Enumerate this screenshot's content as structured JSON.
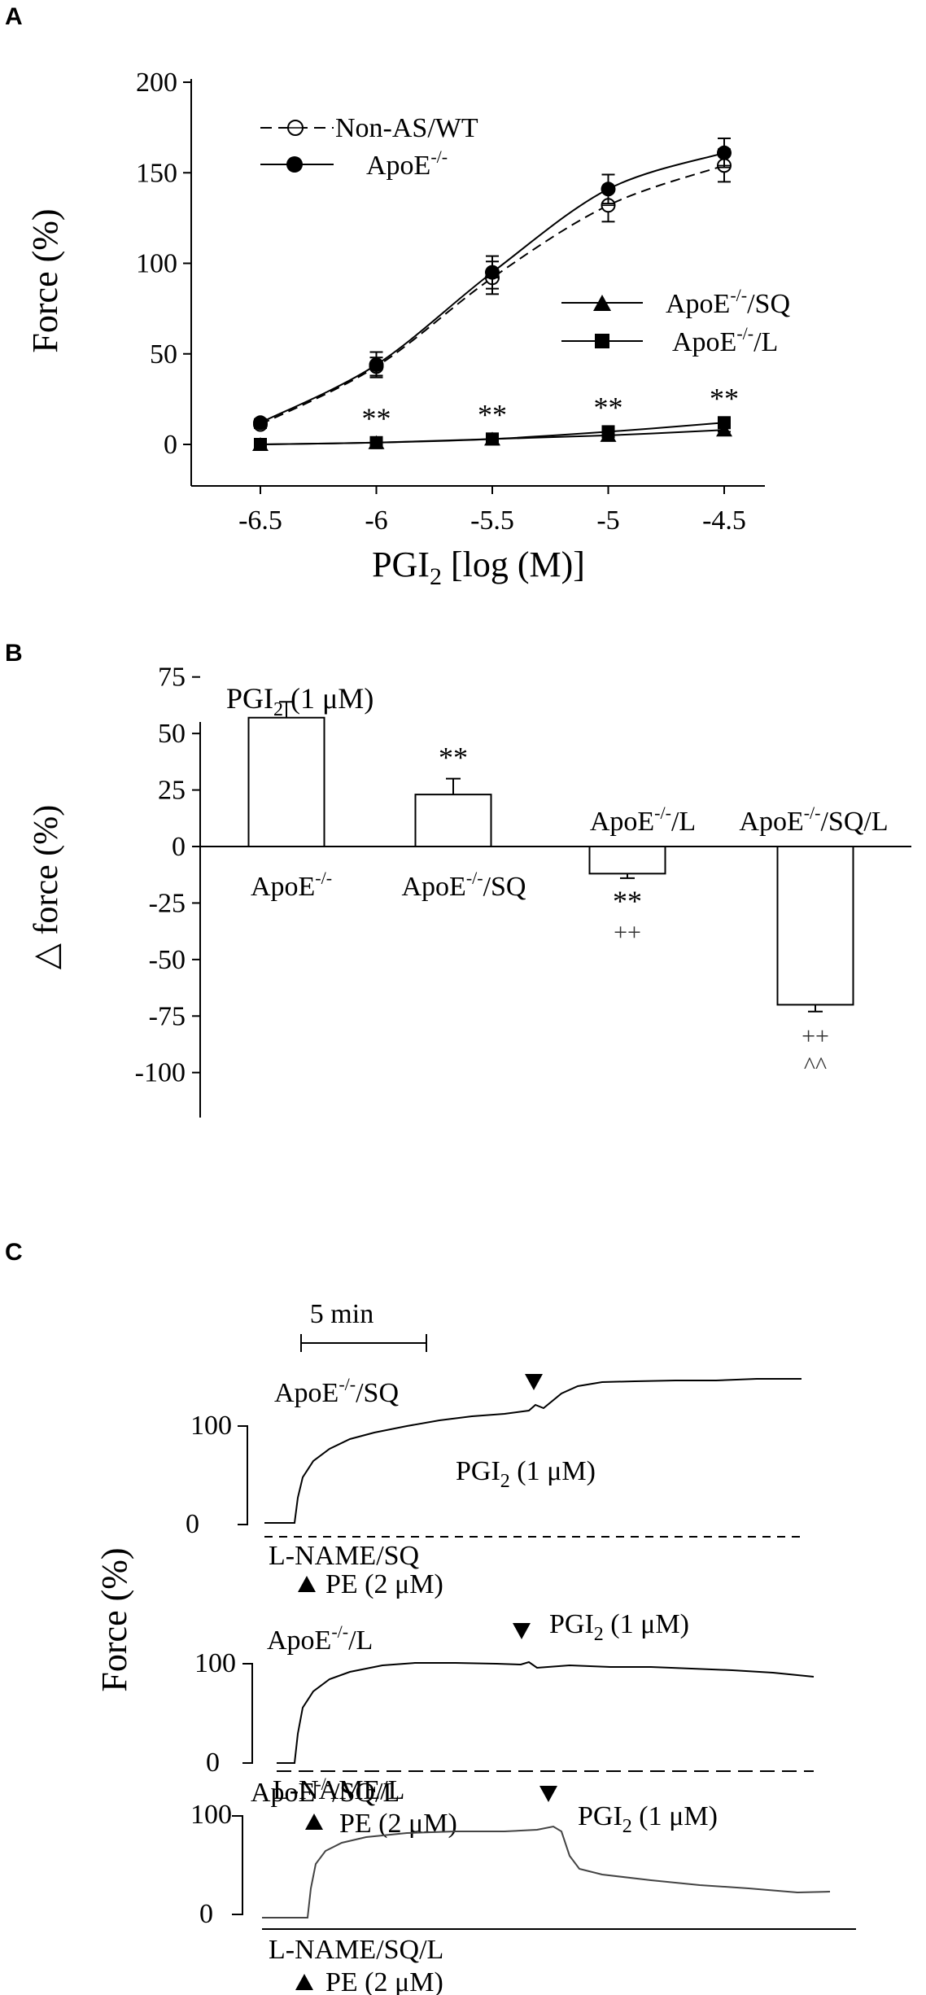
{
  "panels": {
    "a_label": "A",
    "b_label": "B",
    "c_label": "C"
  },
  "chart_data": [
    {
      "type": "line",
      "panel": "A",
      "ylabel": "Force (%)",
      "xlabel_main": "PGI",
      "xlabel_sub": "2",
      "xlabel_rest": " [log (M)]",
      "x": [
        -6.5,
        -6,
        -5.5,
        -5,
        -4.5
      ],
      "x_ticks": [
        "-6.5",
        "-6",
        "-5.5",
        "-5",
        "-4.5"
      ],
      "y_ticks": [
        "0",
        "50",
        "100",
        "150",
        "200"
      ],
      "ylim": [
        0,
        200
      ],
      "series": [
        {
          "name": "Non-AS/WT",
          "values": [
            11,
            43,
            92,
            132,
            154
          ],
          "err": [
            2,
            5,
            9,
            9,
            9
          ],
          "marker": "open-circle",
          "dash": true
        },
        {
          "name": "ApoE",
          "values": [
            12,
            44,
            95,
            141,
            161
          ],
          "err": [
            2,
            7,
            9,
            8,
            8
          ],
          "marker": "filled-circle",
          "dash": false
        },
        {
          "name": "ApoE",
          "values": [
            0,
            1,
            3,
            5,
            8
          ],
          "err": [
            0,
            0,
            0,
            1,
            1
          ],
          "marker": "triangle",
          "dash": false
        },
        {
          "name": "ApoE",
          "values": [
            0,
            1,
            3,
            7,
            12
          ],
          "err": [
            0,
            0,
            1,
            1,
            1
          ],
          "marker": "square",
          "dash": false
        }
      ],
      "legend": [
        {
          "main": "Non-AS/WT",
          "sup": "",
          "suffix": ""
        },
        {
          "main": "ApoE",
          "sup": "-/-",
          "suffix": ""
        },
        {
          "main": "ApoE",
          "sup": "-/-",
          "suffix": "/SQ"
        },
        {
          "main": "ApoE",
          "sup": "-/-",
          "suffix": "/L"
        }
      ],
      "significance": [
        "**",
        "**",
        "**",
        "**"
      ]
    },
    {
      "type": "bar",
      "panel": "B",
      "ylabel": "△ force (%)",
      "annotation_main": "PGI",
      "annotation_sub": "2",
      "annotation_rest": " (1 μM)",
      "categories": [
        {
          "main": "ApoE",
          "sup": "-/-",
          "suffix": ""
        },
        {
          "main": "ApoE",
          "sup": "-/-",
          "suffix": "/SQ"
        },
        {
          "main": "ApoE",
          "sup": "-/-",
          "suffix": "/L"
        },
        {
          "main": "ApoE",
          "sup": "-/-",
          "suffix": "/SQ/L"
        }
      ],
      "values": [
        57,
        23,
        -12,
        -70
      ],
      "err": [
        7,
        7,
        2,
        3
      ],
      "ylim": [
        -100,
        75
      ],
      "y_ticks": [
        "75",
        "50",
        "25",
        "0",
        "-25",
        "-50",
        "-75",
        "-100"
      ],
      "marks": [
        {
          "lines": []
        },
        {
          "lines": [
            "**"
          ]
        },
        {
          "lines": [
            "**",
            "++"
          ]
        },
        {
          "lines": [
            "++",
            "^^"
          ]
        }
      ]
    }
  ],
  "traces": {
    "ylabel": "Force (%)",
    "scale_label": "5 min",
    "tick_100": "100",
    "tick_0": "0",
    "pe_label": "PE (2 μM)",
    "pgi_main": "PGI",
    "pgi_sub": "2",
    "pgi_rest": " (1 μM)",
    "rows": [
      {
        "group_main": "ApoE",
        "group_sup": "-/-",
        "group_suffix": "/SQ",
        "treatment": "L-NAME/SQ"
      },
      {
        "group_main": "ApoE",
        "group_sup": "-/-",
        "group_suffix": "/L",
        "treatment": "L-NAME/L"
      },
      {
        "group_main": "ApoE",
        "group_sup": "-/-",
        "group_suffix": "/SQ/L",
        "treatment": "L-NAME/SQ/L"
      }
    ]
  }
}
